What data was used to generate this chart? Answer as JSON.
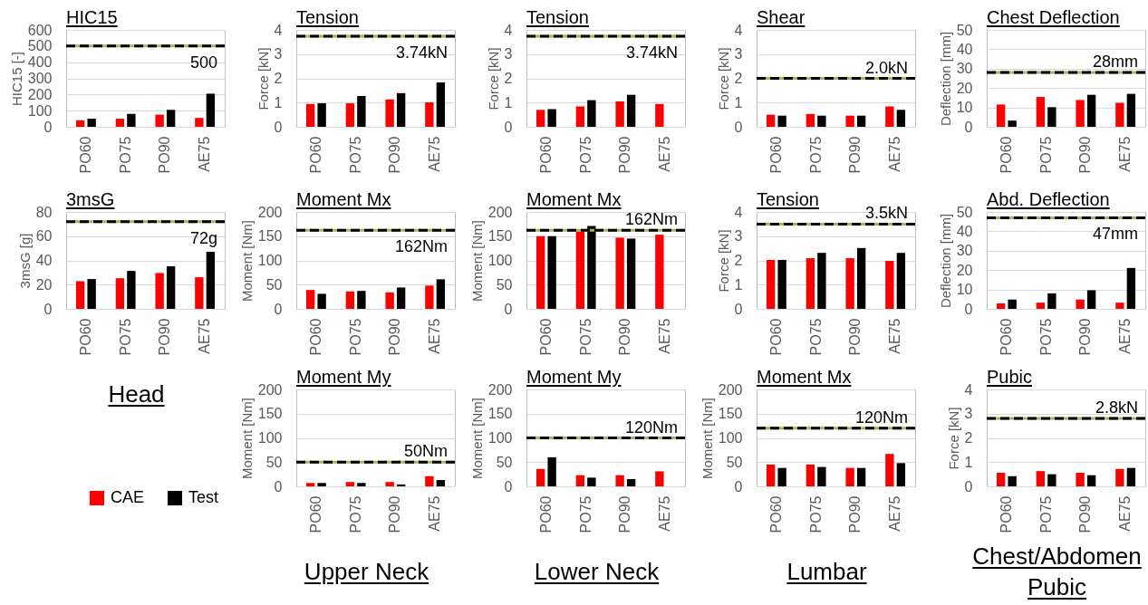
{
  "chart_data": [
    {
      "type": "bar",
      "title": "HIC15",
      "ylabel": "HIC15 [-]",
      "categories": [
        "PO60",
        "PO75",
        "PO90",
        "AE75"
      ],
      "series": [
        {
          "color": "#ff0000",
          "values": [
            40,
            50,
            75,
            55
          ]
        },
        {
          "color": "#000000",
          "values": [
            50,
            80,
            105,
            205
          ]
        }
      ],
      "ylim": [
        0,
        600
      ],
      "yticks": [
        0,
        100,
        200,
        300,
        400,
        500,
        600
      ],
      "grid": "y",
      "ref_lines": [
        {
          "axis": "y",
          "value": 500,
          "label": null,
          "color": "#9bbb59",
          "line_style": "solid"
        },
        {
          "axis": "y",
          "value": 500,
          "label": "500",
          "color": "#000000",
          "line_style": "dashed"
        }
      ]
    },
    {
      "type": "bar",
      "title": "Tension",
      "ylabel": "Force [kN]",
      "categories": [
        "PO60",
        "PO75",
        "PO90",
        "AE75"
      ],
      "series": [
        {
          "color": "#ff0000",
          "values": [
            0.94,
            0.97,
            1.13,
            1.01
          ]
        },
        {
          "color": "#000000",
          "values": [
            0.97,
            1.27,
            1.39,
            1.83
          ]
        }
      ],
      "ylim": [
        0,
        4
      ],
      "yticks": [
        0,
        1,
        2,
        3,
        4
      ],
      "grid": "y",
      "ref_lines": [
        {
          "axis": "y",
          "value": 3.74,
          "label": null,
          "color": "#9bbb59",
          "line_style": "solid"
        },
        {
          "axis": "y",
          "value": 3.74,
          "label": "3.74kN",
          "color": "#000000",
          "line_style": "dashed"
        }
      ]
    },
    {
      "type": "bar",
      "title": "Tension",
      "ylabel": "Force [kN]",
      "categories": [
        "PO60",
        "PO75",
        "PO90",
        "AE75"
      ],
      "series": [
        {
          "color": "#ff0000",
          "values": [
            0.7,
            0.84,
            1.05,
            0.94
          ]
        },
        {
          "color": "#000000",
          "values": [
            0.73,
            1.1,
            1.32,
            null
          ]
        }
      ],
      "ylim": [
        0,
        4
      ],
      "yticks": [
        0,
        1,
        2,
        3,
        4
      ],
      "grid": "y",
      "ref_lines": [
        {
          "axis": "y",
          "value": 3.74,
          "label": null,
          "color": "#9bbb59",
          "line_style": "solid"
        },
        {
          "axis": "y",
          "value": 3.74,
          "label": "3.74kN",
          "color": "#000000",
          "line_style": "dashed"
        }
      ]
    },
    {
      "type": "bar",
      "title": "Shear",
      "ylabel": "Force [kN]",
      "categories": [
        "PO60",
        "PO75",
        "PO90",
        "AE75"
      ],
      "series": [
        {
          "color": "#ff0000",
          "values": [
            0.5,
            0.53,
            0.46,
            0.84
          ]
        },
        {
          "color": "#000000",
          "values": [
            0.46,
            0.46,
            0.46,
            0.7
          ]
        }
      ],
      "ylim": [
        0,
        4
      ],
      "yticks": [
        0,
        1,
        2,
        3,
        4
      ],
      "grid": "y",
      "ref_lines": [
        {
          "axis": "y",
          "value": 2,
          "label": null,
          "color": "#9bbb59",
          "line_style": "solid"
        },
        {
          "axis": "y",
          "value": 2,
          "label": "2.0kN",
          "color": "#000000",
          "line_style": "dashed"
        }
      ]
    },
    {
      "type": "bar",
      "title": "Chest Deflection",
      "ylabel": "Deflection [mm]",
      "categories": [
        "PO60",
        "PO75",
        "PO90",
        "AE75"
      ],
      "series": [
        {
          "color": "#ff0000",
          "values": [
            11.5,
            15.4,
            13.8,
            12.4
          ]
        },
        {
          "color": "#000000",
          "values": [
            3.2,
            10.1,
            16.5,
            17
          ]
        }
      ],
      "ylim": [
        0,
        50
      ],
      "yticks": [
        0,
        10,
        20,
        30,
        40,
        50
      ],
      "grid": "y",
      "ref_lines": [
        {
          "axis": "y",
          "value": 28,
          "label": null,
          "color": "#9bbb59",
          "line_style": "solid"
        },
        {
          "axis": "y",
          "value": 28,
          "label": "28mm",
          "color": "#000000",
          "line_style": "dashed"
        }
      ]
    },
    {
      "type": "bar",
      "title": "3msG",
      "ylabel": "3msG [g]",
      "categories": [
        "PO60",
        "PO75",
        "PO90",
        "AE75"
      ],
      "series": [
        {
          "name": "CAE",
          "color": "#ff0000",
          "values": [
            22.8,
            25.3,
            29.6,
            26.1
          ]
        },
        {
          "name": "Test",
          "color": "#000000",
          "values": [
            24.6,
            31.3,
            35.1,
            47.1
          ]
        }
      ],
      "ylim": [
        0,
        80
      ],
      "yticks": [
        0,
        20,
        40,
        60,
        80
      ],
      "grid": "y",
      "legend": "bottom",
      "annotations": [
        "Head"
      ],
      "ref_lines": [
        {
          "axis": "y",
          "value": 72,
          "label": null,
          "color": "#9bbb59",
          "line_style": "solid"
        },
        {
          "axis": "y",
          "value": 72,
          "label": "72g",
          "color": "#000000",
          "line_style": "dashed"
        }
      ]
    },
    {
      "type": "bar",
      "title": "Moment Mx",
      "ylabel": "Moment [Nm]",
      "categories": [
        "PO60",
        "PO75",
        "PO90",
        "AE75"
      ],
      "series": [
        {
          "color": "#ff0000",
          "values": [
            39,
            36,
            34,
            48
          ]
        },
        {
          "color": "#000000",
          "values": [
            31,
            37,
            44,
            61
          ]
        }
      ],
      "ylim": [
        0,
        200
      ],
      "yticks": [
        0,
        50,
        100,
        150,
        200
      ],
      "grid": "y",
      "ref_lines": [
        {
          "axis": "y",
          "value": 162,
          "label": null,
          "color": "#9bbb59",
          "line_style": "solid"
        },
        {
          "axis": "y",
          "value": 162,
          "label": "162Nm",
          "color": "#000000",
          "line_style": "dashed"
        }
      ]
    },
    {
      "type": "bar",
      "title": "Moment Mx",
      "ylabel": "Moment [Nm]",
      "categories": [
        "PO60",
        "PO75",
        "PO90",
        "AE75"
      ],
      "series": [
        {
          "color": "#ff0000",
          "values": [
            150,
            160,
            147,
            153
          ]
        },
        {
          "color": "#000000",
          "values": [
            150,
            171,
            145,
            null
          ]
        }
      ],
      "ylim": [
        0,
        200
      ],
      "yticks": [
        0,
        50,
        100,
        150,
        200
      ],
      "grid": "y",
      "ref_lines": [
        {
          "axis": "y",
          "value": 162,
          "label": null,
          "color": "#9bbb59",
          "line_style": "solid"
        },
        {
          "axis": "y",
          "value": 162,
          "label": "162Nm",
          "color": "#000000",
          "line_style": "dashed"
        }
      ]
    },
    {
      "type": "bar",
      "title": "Tension",
      "ylabel": "Force [kN]",
      "categories": [
        "PO60",
        "PO75",
        "PO90",
        "AE75"
      ],
      "series": [
        {
          "color": "#ff0000",
          "values": [
            2.02,
            2.09,
            2.09,
            1.98
          ]
        },
        {
          "color": "#000000",
          "values": [
            2.02,
            2.31,
            2.51,
            2.31
          ]
        }
      ],
      "ylim": [
        0,
        4
      ],
      "yticks": [
        0,
        1,
        2,
        3,
        4
      ],
      "grid": "y",
      "ref_lines": [
        {
          "axis": "y",
          "value": 3.5,
          "label": null,
          "color": "#9bbb59",
          "line_style": "solid"
        },
        {
          "axis": "y",
          "value": 3.5,
          "label": "3.5kN",
          "color": "#000000",
          "line_style": "dashed"
        }
      ]
    },
    {
      "type": "bar",
      "title": "Abd. Deflection",
      "ylabel": "Deflection [mm]",
      "categories": [
        "PO60",
        "PO75",
        "PO90",
        "AE75"
      ],
      "series": [
        {
          "color": "#ff0000",
          "values": [
            2.8,
            3.2,
            4.8,
            3.2
          ]
        },
        {
          "color": "#000000",
          "values": [
            4.8,
            8,
            9.6,
            21.1
          ]
        }
      ],
      "ylim": [
        0,
        50
      ],
      "yticks": [
        0,
        10,
        20,
        30,
        40,
        50
      ],
      "grid": "y",
      "ref_lines": [
        {
          "axis": "y",
          "value": 47,
          "label": null,
          "color": "#9bbb59",
          "line_style": "solid"
        },
        {
          "axis": "y",
          "value": 47,
          "label": "47mm",
          "color": "#000000",
          "line_style": "dashed"
        }
      ]
    },
    {
      "type": "bar",
      "title": "Moment My",
      "ylabel": "Moment [Nm]",
      "categories": [
        "PO60",
        "PO75",
        "PO90",
        "AE75"
      ],
      "series": [
        {
          "color": "#ff0000",
          "values": [
            7,
            9,
            9,
            21
          ]
        },
        {
          "color": "#000000",
          "values": [
            7,
            7,
            4,
            13
          ]
        }
      ],
      "ylim": [
        0,
        200
      ],
      "yticks": [
        0,
        50,
        100,
        150,
        200
      ],
      "grid": "y",
      "annotations": [
        "Upper Neck"
      ],
      "ref_lines": [
        {
          "axis": "y",
          "value": 50,
          "label": null,
          "color": "#9bbb59",
          "line_style": "solid"
        },
        {
          "axis": "y",
          "value": 50,
          "label": "50Nm",
          "color": "#000000",
          "line_style": "dashed"
        }
      ]
    },
    {
      "type": "bar",
      "title": "Moment My",
      "ylabel": "Moment [Nm]",
      "categories": [
        "PO60",
        "PO75",
        "PO90",
        "AE75"
      ],
      "series": [
        {
          "color": "#ff0000",
          "values": [
            36,
            23,
            23,
            31
          ]
        },
        {
          "color": "#000000",
          "values": [
            60,
            18,
            15,
            null
          ]
        }
      ],
      "ylim": [
        0,
        200
      ],
      "yticks": [
        0,
        50,
        100,
        150,
        200
      ],
      "grid": "y",
      "annotations": [
        "Lower Neck"
      ],
      "ref_lines": [
        {
          "axis": "y",
          "value": 100,
          "label": null,
          "color": "#9bbb59",
          "line_style": "solid"
        },
        {
          "axis": "y",
          "value": 100,
          "label": "120Nm",
          "color": "#000000",
          "line_style": "dashed"
        }
      ]
    },
    {
      "type": "bar",
      "title": "Moment Mx",
      "ylabel": "Moment [Nm]",
      "categories": [
        "PO60",
        "PO75",
        "PO90",
        "AE75"
      ],
      "series": [
        {
          "color": "#ff0000",
          "values": [
            45,
            45,
            38,
            67
          ]
        },
        {
          "color": "#000000",
          "values": [
            38,
            40,
            38,
            48
          ]
        }
      ],
      "ylim": [
        0,
        200
      ],
      "yticks": [
        0,
        50,
        100,
        150,
        200
      ],
      "grid": "y",
      "annotations": [
        "Lumbar"
      ],
      "ref_lines": [
        {
          "axis": "y",
          "value": 120,
          "label": null,
          "color": "#9bbb59",
          "line_style": "solid"
        },
        {
          "axis": "y",
          "value": 120,
          "label": "120Nm",
          "color": "#000000",
          "line_style": "dashed"
        }
      ]
    },
    {
      "type": "bar",
      "title": "Pubic",
      "ylabel": "Force [kN]",
      "categories": [
        "PO60",
        "PO75",
        "PO90",
        "AE75"
      ],
      "series": [
        {
          "color": "#ff0000",
          "values": [
            0.56,
            0.63,
            0.56,
            0.72
          ]
        },
        {
          "color": "#000000",
          "values": [
            0.42,
            0.5,
            0.46,
            0.76
          ]
        }
      ],
      "ylim": [
        0,
        4
      ],
      "yticks": [
        0,
        1,
        2,
        3,
        4
      ],
      "grid": "y",
      "annotations": [
        "Chest/Abdomen Pubic"
      ],
      "ref_lines": [
        {
          "axis": "y",
          "value": 2.8,
          "label": null,
          "color": "#9bbb59",
          "line_style": "solid"
        },
        {
          "axis": "y",
          "value": 2.8,
          "label": "2.8kN",
          "color": "#000000",
          "line_style": "dashed"
        }
      ]
    }
  ]
}
